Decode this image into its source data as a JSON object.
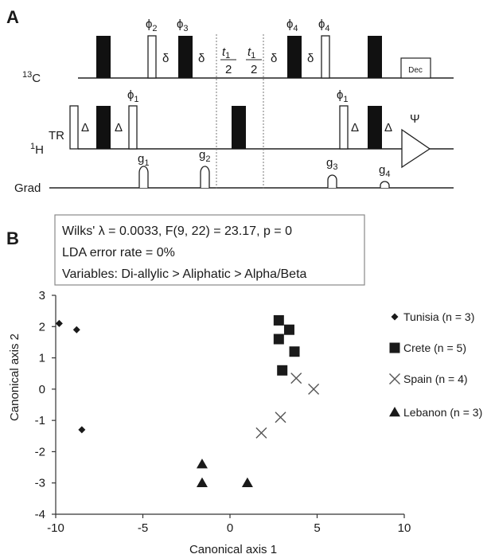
{
  "panelA": {
    "label": "A",
    "channels": {
      "c13": "13C",
      "h1": "1H",
      "grad": "Grad"
    },
    "phases": {
      "phi2": "ϕ2",
      "phi3": "ϕ3",
      "phi4a": "ϕ4",
      "phi4b": "ϕ4",
      "phi1a": "ϕ1",
      "phi1b": "ϕ1",
      "psi": "Ψ"
    },
    "delays": {
      "delta": "δ",
      "Delta": "Δ",
      "t1": "t1",
      "two": "2"
    },
    "gradients": {
      "g1": "g1",
      "g2": "g2",
      "g3": "g3",
      "g4": "g4"
    },
    "blocks": {
      "tr": "TR",
      "dec": "Dec"
    }
  },
  "panelB": {
    "label": "B",
    "stats": {
      "line1": "Wilks' λ = 0.0033, F(9, 22) = 23.17, p = 0",
      "line2": "LDA error rate  = 0%",
      "line3": "Variables: Di-allylic > Aliphatic > Alpha/Beta"
    }
  },
  "chart_data": {
    "type": "scatter",
    "xlabel": "Canonical axis  1",
    "ylabel": "Canonical axis 2",
    "xlim": [
      -10,
      10
    ],
    "ylim": [
      -4,
      3
    ],
    "xticks": [
      -10,
      -5,
      0,
      5,
      10
    ],
    "yticks": [
      3,
      2,
      1,
      0,
      -1,
      -2,
      -3,
      -4
    ],
    "grid": false,
    "legend_position": "right",
    "series": [
      {
        "name": "Tunisia (n = 3)",
        "marker": "diamond",
        "points": [
          [
            -9.8,
            2.1
          ],
          [
            -8.8,
            1.9
          ],
          [
            -8.5,
            -1.3
          ]
        ]
      },
      {
        "name": "Crete (n = 5)",
        "marker": "square",
        "points": [
          [
            2.8,
            2.2
          ],
          [
            3.4,
            1.9
          ],
          [
            2.8,
            1.6
          ],
          [
            3.7,
            1.2
          ],
          [
            3.0,
            0.6
          ]
        ]
      },
      {
        "name": "Spain (n = 4)",
        "marker": "x",
        "points": [
          [
            3.8,
            0.35
          ],
          [
            4.8,
            0.0
          ],
          [
            2.9,
            -0.9
          ],
          [
            1.8,
            -1.4
          ]
        ]
      },
      {
        "name": "Lebanon (n = 3)",
        "marker": "triangle",
        "points": [
          [
            -1.6,
            -2.4
          ],
          [
            -1.6,
            -3.0
          ],
          [
            1.0,
            -3.0
          ]
        ]
      }
    ]
  }
}
